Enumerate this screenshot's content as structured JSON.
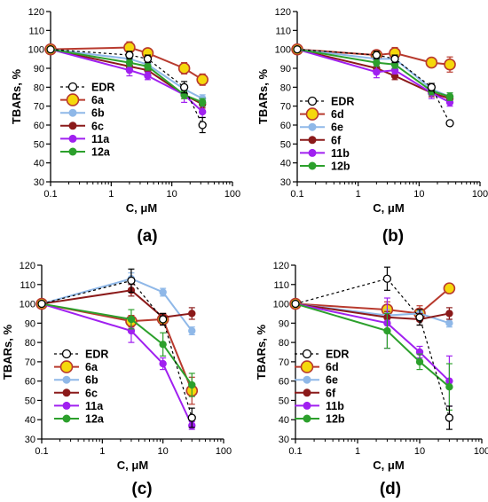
{
  "chart_data": [
    {
      "type": "line",
      "panel_label": "(a)",
      "xlabel": "C, μM",
      "ylabel": "TBARs, %",
      "xscale": "log",
      "xlim": [
        0.1,
        100
      ],
      "ylim": [
        30,
        120
      ],
      "x_ticks": [
        "0.1",
        "1",
        "10",
        "100"
      ],
      "y_ticks": [
        "30",
        "40",
        "50",
        "60",
        "70",
        "80",
        "90",
        "100",
        "110",
        "120"
      ],
      "legend_position": "lower-left",
      "series": [
        {
          "name": "EDR",
          "color": "#ffffff",
          "marker": "open",
          "dashed": true,
          "x": [
            0.1,
            2,
            4,
            16,
            32
          ],
          "y": [
            100,
            97,
            95,
            80,
            60
          ],
          "err": [
            0,
            2,
            2,
            3,
            4
          ]
        },
        {
          "name": "6a",
          "color": "#f5d80c",
          "marker": "big",
          "line": "#b83a2e",
          "x": [
            0.1,
            2,
            4,
            16,
            32
          ],
          "y": [
            100,
            101,
            98,
            90,
            84
          ],
          "err": [
            0,
            3,
            2,
            3,
            3
          ]
        },
        {
          "name": "6b",
          "color": "#8fb8e8",
          "x": [
            0.1,
            2,
            4,
            16,
            32
          ],
          "y": [
            100,
            95,
            92,
            79,
            74
          ],
          "err": [
            0,
            2,
            2,
            2,
            2
          ]
        },
        {
          "name": "6c",
          "color": "#8b1a1a",
          "x": [
            0.1,
            2,
            4,
            16,
            32
          ],
          "y": [
            100,
            91,
            89,
            76,
            71
          ],
          "err": [
            0,
            2,
            2,
            2,
            2
          ]
        },
        {
          "name": "11a",
          "color": "#a020f0",
          "x": [
            0.1,
            2,
            4,
            16,
            32
          ],
          "y": [
            100,
            89,
            86,
            76,
            67
          ],
          "err": [
            0,
            3,
            2,
            4,
            3
          ]
        },
        {
          "name": "12a",
          "color": "#2ca02c",
          "x": [
            0.1,
            2,
            4,
            16,
            32
          ],
          "y": [
            100,
            93,
            91,
            76,
            72
          ],
          "err": [
            0,
            2,
            2,
            2,
            2
          ]
        }
      ]
    },
    {
      "type": "line",
      "panel_label": "(b)",
      "xlabel": "C, μM",
      "ylabel": "TBARs, %",
      "xscale": "log",
      "xlim": [
        0.1,
        100
      ],
      "ylim": [
        30,
        120
      ],
      "x_ticks": [
        "0.1",
        "1",
        "10",
        "100"
      ],
      "y_ticks": [
        "30",
        "40",
        "50",
        "60",
        "70",
        "80",
        "90",
        "100",
        "110",
        "120"
      ],
      "legend_position": "lower-left",
      "series": [
        {
          "name": "EDR",
          "color": "#ffffff",
          "marker": "open",
          "dashed": true,
          "x": [
            0.1,
            2,
            4,
            16,
            32
          ],
          "y": [
            100,
            97,
            95,
            80,
            61
          ],
          "err": [
            0,
            2,
            2,
            2,
            1
          ]
        },
        {
          "name": "6d",
          "color": "#f5d80c",
          "marker": "big",
          "line": "#b83a2e",
          "x": [
            0.1,
            2,
            4,
            16,
            32
          ],
          "y": [
            100,
            97,
            98,
            93,
            92
          ],
          "err": [
            0,
            1,
            3,
            2,
            4
          ]
        },
        {
          "name": "6e",
          "color": "#8fb8e8",
          "x": [
            0.1,
            2,
            4,
            16,
            32
          ],
          "y": [
            100,
            95,
            95,
            79,
            75
          ],
          "err": [
            0,
            2,
            2,
            2,
            2
          ]
        },
        {
          "name": "6f",
          "color": "#8b1a1a",
          "x": [
            0.1,
            2,
            4,
            16,
            32
          ],
          "y": [
            100,
            90,
            86,
            77,
            74
          ],
          "err": [
            0,
            2,
            2,
            2,
            2
          ]
        },
        {
          "name": "11b",
          "color": "#a020f0",
          "x": [
            0.1,
            2,
            4,
            16,
            32
          ],
          "y": [
            100,
            88,
            89,
            77,
            72
          ],
          "err": [
            0,
            3,
            2,
            3,
            2
          ]
        },
        {
          "name": "12b",
          "color": "#2ca02c",
          "x": [
            0.1,
            2,
            4,
            16,
            32
          ],
          "y": [
            100,
            93,
            92,
            78,
            75
          ],
          "err": [
            0,
            2,
            2,
            2,
            2
          ]
        }
      ]
    },
    {
      "type": "line",
      "panel_label": "(c)",
      "xlabel": "C, μM",
      "ylabel": "TBARs, %",
      "xscale": "log",
      "xlim": [
        0.1,
        100
      ],
      "ylim": [
        30,
        120
      ],
      "x_ticks": [
        "0.1",
        "1",
        "10",
        "100"
      ],
      "y_ticks": [
        "30",
        "40",
        "50",
        "60",
        "70",
        "80",
        "90",
        "100",
        "110",
        "120"
      ],
      "legend_position": "lower-left",
      "series": [
        {
          "name": "EDR",
          "color": "#ffffff",
          "marker": "open",
          "dashed": true,
          "x": [
            0.1,
            3,
            10,
            30
          ],
          "y": [
            100,
            112,
            92,
            41
          ],
          "err": [
            0,
            6,
            3,
            5
          ]
        },
        {
          "name": "6a",
          "color": "#f5d80c",
          "marker": "big",
          "line": "#b83a2e",
          "x": [
            0.1,
            3,
            10,
            30
          ],
          "y": [
            100,
            91,
            92,
            55
          ],
          "err": [
            0,
            3,
            3,
            7
          ]
        },
        {
          "name": "6b",
          "color": "#8fb8e8",
          "x": [
            0.1,
            3,
            10,
            30
          ],
          "y": [
            100,
            113,
            106,
            86
          ],
          "err": [
            0,
            3,
            2,
            2
          ]
        },
        {
          "name": "6c",
          "color": "#8b1a1a",
          "x": [
            0.1,
            3,
            10,
            30
          ],
          "y": [
            100,
            107,
            93,
            95
          ],
          "err": [
            0,
            3,
            2,
            3
          ]
        },
        {
          "name": "11a",
          "color": "#a020f0",
          "x": [
            0.1,
            3,
            10,
            30
          ],
          "y": [
            100,
            86,
            69,
            37
          ],
          "err": [
            0,
            6,
            3,
            2
          ]
        },
        {
          "name": "12a",
          "color": "#2ca02c",
          "x": [
            0.1,
            3,
            10,
            30
          ],
          "y": [
            100,
            92,
            79,
            58
          ],
          "err": [
            0,
            5,
            6,
            6
          ]
        }
      ]
    },
    {
      "type": "line",
      "panel_label": "(d)",
      "xlabel": "C, μM",
      "ylabel": "TBARs, %",
      "xscale": "log",
      "xlim": [
        0.1,
        100
      ],
      "ylim": [
        30,
        120
      ],
      "x_ticks": [
        "0.1",
        "1",
        "10",
        "100"
      ],
      "y_ticks": [
        "30",
        "40",
        "50",
        "60",
        "70",
        "80",
        "90",
        "100",
        "110",
        "120"
      ],
      "legend_position": "lower-left",
      "series": [
        {
          "name": "EDR",
          "color": "#ffffff",
          "marker": "open",
          "dashed": true,
          "x": [
            0.1,
            3,
            10,
            30
          ],
          "y": [
            100,
            113,
            93,
            41
          ],
          "err": [
            0,
            6,
            4,
            6
          ]
        },
        {
          "name": "6d",
          "color": "#f5d80c",
          "marker": "big",
          "line": "#b83a2e",
          "x": [
            0.1,
            3,
            10,
            30
          ],
          "y": [
            100,
            97,
            95,
            108
          ],
          "err": [
            0,
            4,
            4,
            2
          ]
        },
        {
          "name": "6e",
          "color": "#8fb8e8",
          "x": [
            0.1,
            3,
            10,
            30
          ],
          "y": [
            100,
            94,
            95,
            90
          ],
          "err": [
            0,
            3,
            2,
            2
          ]
        },
        {
          "name": "6f",
          "color": "#8b1a1a",
          "x": [
            0.1,
            3,
            10,
            30
          ],
          "y": [
            100,
            93,
            92,
            95
          ],
          "err": [
            0,
            3,
            3,
            3
          ]
        },
        {
          "name": "11b",
          "color": "#a020f0",
          "x": [
            0.1,
            3,
            10,
            30
          ],
          "y": [
            100,
            90,
            75,
            60
          ],
          "err": [
            0,
            13,
            3,
            13
          ]
        },
        {
          "name": "12b",
          "color": "#2ca02c",
          "x": [
            0.1,
            3,
            10,
            30
          ],
          "y": [
            100,
            86,
            70,
            57
          ],
          "err": [
            0,
            9,
            4,
            12
          ]
        }
      ]
    }
  ]
}
